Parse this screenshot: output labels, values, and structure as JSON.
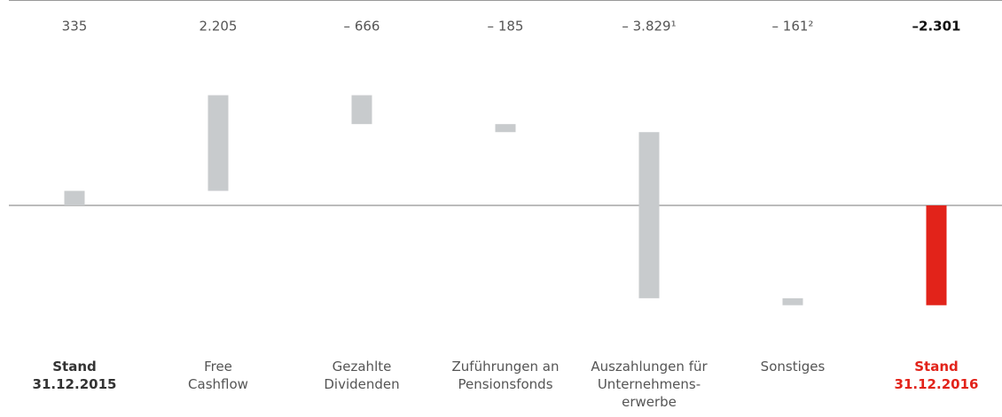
{
  "chart_data": {
    "type": "waterfall",
    "categories": [
      "Stand\n31.12.2015",
      "Free\nCashflow",
      "Gezahlte\nDividenden",
      "Zuführungen an\nPensionsfonds",
      "Auszahlungen für\nUnternehmens-\nerwerbe",
      "Sonstiges",
      "Stand\n31.12.2016"
    ],
    "values": [
      335,
      2205,
      -666,
      -185,
      -3829,
      -161,
      -2301
    ],
    "value_labels": [
      "335",
      "2.205",
      "– 666",
      "– 185",
      "– 3.829¹",
      "– 161²",
      "–2.301"
    ],
    "colors": [
      "#c8cbcd",
      "#c8cbcd",
      "#c8cbcd",
      "#c8cbcd",
      "#c8cbcd",
      "#c8cbcd",
      "#e2231a"
    ],
    "ylim": [
      -2600,
      2900
    ]
  }
}
